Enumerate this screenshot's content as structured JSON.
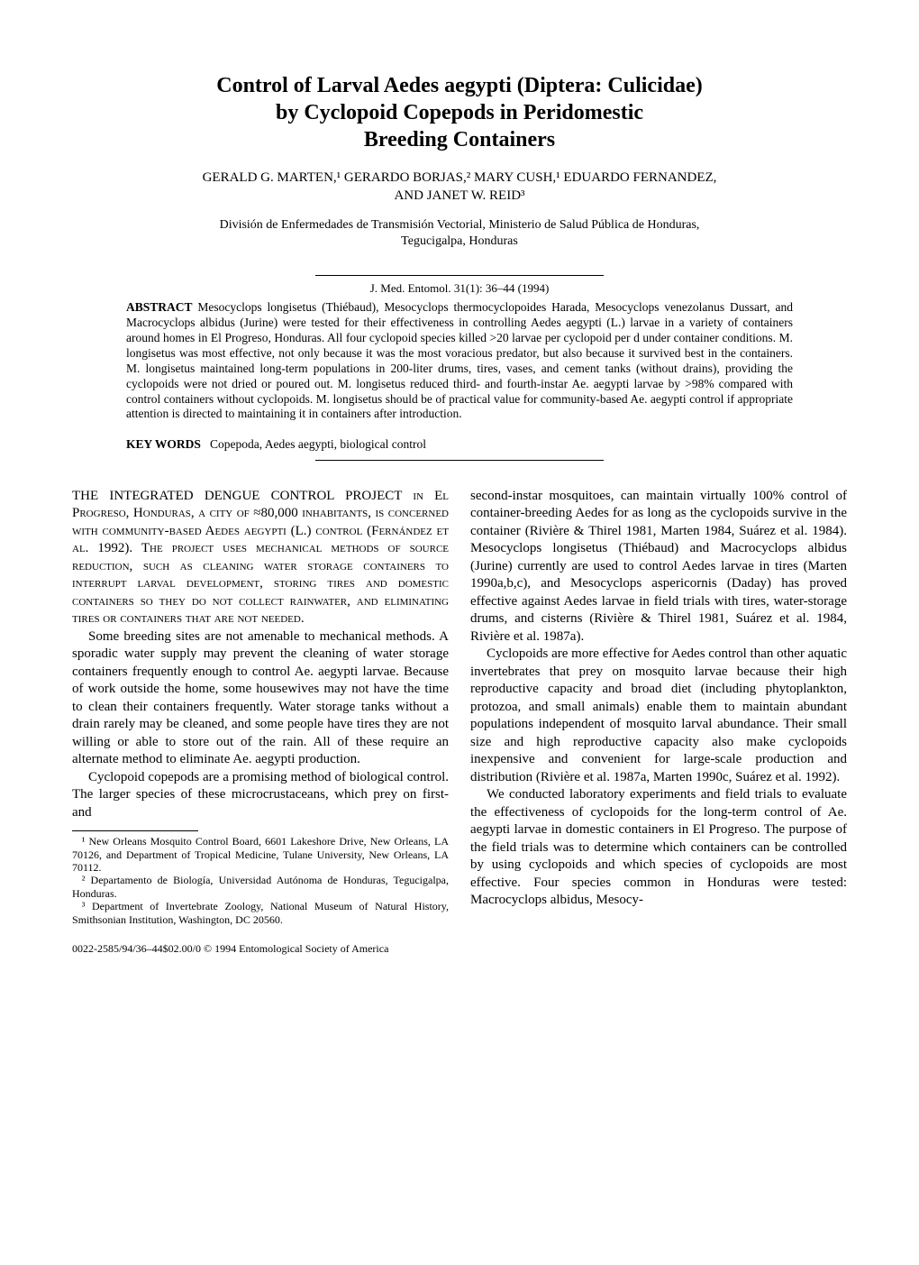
{
  "title_line1": "Control of Larval Aedes aegypti (Diptera: Culicidae)",
  "title_line2": "by Cyclopoid Copepods in Peridomestic",
  "title_line3": "Breeding Containers",
  "authors_line1": "GERALD G. MARTEN,¹ GERARDO BORJAS,² MARY CUSH,¹ EDUARDO FERNANDEZ,",
  "authors_line2": "AND JANET W. REID³",
  "affiliation_line1": "División de Enfermedades de Transmisión Vectorial, Ministerio de Salud Pública de Honduras,",
  "affiliation_line2": "Tegucigalpa, Honduras",
  "citation": "J. Med. Entomol. 31(1): 36–44 (1994)",
  "abstract_label": "ABSTRACT",
  "abstract_text": "Mesocyclops longisetus (Thiébaud), Mesocyclops thermocyclopoides Harada, Mesocyclops venezolanus Dussart, and Macrocyclops albidus (Jurine) were tested for their effectiveness in controlling Aedes aegypti (L.) larvae in a variety of containers around homes in El Progreso, Honduras. All four cyclopoid species killed >20 larvae per cyclopoid per d under container conditions. M. longisetus was most effective, not only because it was the most voracious predator, but also because it survived best in the containers. M. longisetus maintained long-term populations in 200-liter drums, tires, vases, and cement tanks (without drains), providing the cyclopoids were not dried or poured out. M. longisetus reduced third- and fourth-instar Ae. aegypti larvae by >98% compared with control containers without cyclopoids. M. longisetus should be of practical value for community-based Ae. aegypti control if appropriate attention is directed to maintaining it in containers after introduction.",
  "keywords_label": "KEY WORDS",
  "keywords_text": "Copepoda, Aedes aegypti, biological control",
  "body": {
    "p1": "THE INTEGRATED DENGUE CONTROL PROJECT in El Progreso, Honduras, a city of ≈80,000 inhabitants, is concerned with community-based Aedes aegypti (L.) control (Fernández et al. 1992). The project uses mechanical methods of source reduction, such as cleaning water storage containers to interrupt larval development, storing tires and domestic containers so they do not collect rainwater, and eliminating tires or containers that are not needed.",
    "p2": "Some breeding sites are not amenable to mechanical methods. A sporadic water supply may prevent the cleaning of water storage containers frequently enough to control Ae. aegypti larvae. Because of work outside the home, some housewives may not have the time to clean their containers frequently. Water storage tanks without a drain rarely may be cleaned, and some people have tires they are not willing or able to store out of the rain. All of these require an alternate method to eliminate Ae. aegypti production.",
    "p3": "Cyclopoid copepods are a promising method of biological control. The larger species of these microcrustaceans, which prey on first- and",
    "p4": "second-instar mosquitoes, can maintain virtually 100% control of container-breeding Aedes for as long as the cyclopoids survive in the container (Rivière & Thirel 1981, Marten 1984, Suárez et al. 1984). Mesocyclops longisetus (Thiébaud) and Macrocyclops albidus (Jurine) currently are used to control Aedes larvae in tires (Marten 1990a,b,c), and Mesocyclops aspericornis (Daday) has proved effective against Aedes larvae in field trials with tires, water-storage drums, and cisterns (Rivière & Thirel 1981, Suárez et al. 1984, Rivière et al. 1987a).",
    "p5": "Cyclopoids are more effective for Aedes control than other aquatic invertebrates that prey on mosquito larvae because their high reproductive capacity and broad diet (including phytoplankton, protozoa, and small animals) enable them to maintain abundant populations independent of mosquito larval abundance. Their small size and high reproductive capacity also make cyclopoids inexpensive and convenient for large-scale production and distribution (Rivière et al. 1987a, Marten 1990c, Suárez et al. 1992).",
    "p6": "We conducted laboratory experiments and field trials to evaluate the effectiveness of cyclopoids for the long-term control of Ae. aegypti larvae in domestic containers in El Progreso. The purpose of the field trials was to determine which containers can be controlled by using cyclopoids and which species of cyclopoids are most effective. Four species common in Honduras were tested: Macrocyclops albidus, Mesocy-"
  },
  "footnotes": {
    "f1": "¹ New Orleans Mosquito Control Board, 6601 Lakeshore Drive, New Orleans, LA 70126, and Department of Tropical Medicine, Tulane University, New Orleans, LA 70112.",
    "f2": "² Departamento de Biología, Universidad Autónoma de Honduras, Tegucigalpa, Honduras.",
    "f3": "³ Department of Invertebrate Zoology, National Museum of Natural History, Smithsonian Institution, Washington, DC 20560."
  },
  "copyright": "0022-2585/94/36–44$02.00/0 © 1994 Entomological Society of America"
}
